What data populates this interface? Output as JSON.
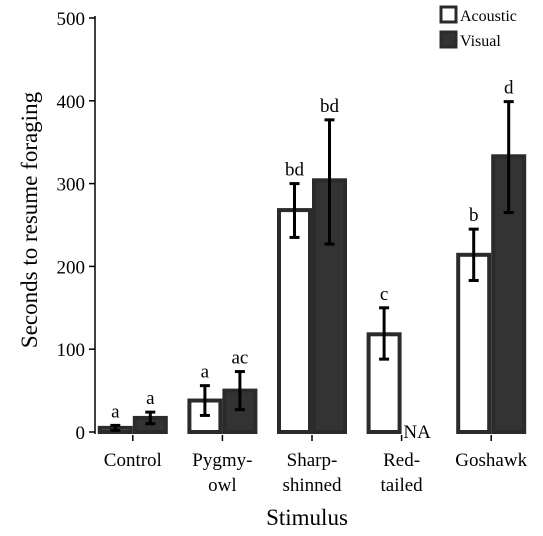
{
  "chart_data": {
    "type": "bar",
    "xlabel": "Stimulus",
    "ylabel": "Seconds to resume foraging",
    "ylim": [
      0,
      500
    ],
    "yticks": [
      0,
      100,
      200,
      300,
      400,
      500
    ],
    "categories": [
      {
        "lines": [
          "Control"
        ]
      },
      {
        "lines": [
          "Pygmy-",
          "owl"
        ]
      },
      {
        "lines": [
          "Sharp-",
          "shinned"
        ]
      },
      {
        "lines": [
          "Red-",
          "tailed"
        ]
      },
      {
        "lines": [
          "Goshawk"
        ]
      }
    ],
    "series": [
      {
        "name": "Acoustic",
        "color": "#ffffff",
        "stroke": "#2b2b2b",
        "values": [
          5,
          38,
          268,
          118,
          214
        ],
        "err_low": [
          2,
          20,
          235,
          88,
          183
        ],
        "err_high": [
          8,
          56,
          300,
          150,
          245
        ],
        "sig": [
          "a",
          "a",
          "bd",
          "c",
          "b"
        ]
      },
      {
        "name": "Visual",
        "color": "#333333",
        "stroke": "#2b2b2b",
        "values": [
          17,
          50,
          304,
          null,
          333
        ],
        "err_low": [
          10,
          27,
          227,
          null,
          265
        ],
        "err_high": [
          24,
          73,
          377,
          null,
          399
        ],
        "sig": [
          "a",
          "ac",
          "bd",
          "NA",
          "d"
        ]
      }
    ],
    "legend_position": "top-right",
    "grid": false
  }
}
